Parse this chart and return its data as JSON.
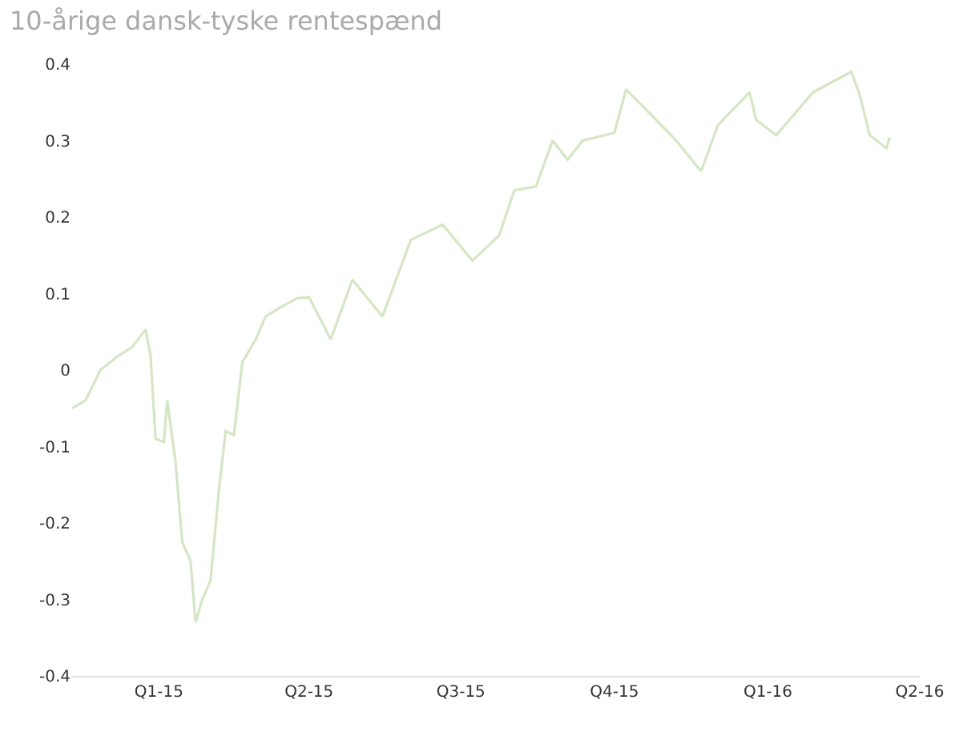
{
  "chart_data": {
    "type": "line",
    "title": "10-årige dansk-tyske rentespænd",
    "x": [
      "2014-11-10",
      "2014-11-18",
      "2014-11-27",
      "2014-12-06",
      "2014-12-16",
      "2014-12-24",
      "2014-12-27",
      "2014-12-30",
      "2015-01-04",
      "2015-01-06",
      "2015-01-11",
      "2015-01-15",
      "2015-01-20",
      "2015-01-23",
      "2015-01-27",
      "2015-02-01",
      "2015-02-06",
      "2015-02-10",
      "2015-02-15",
      "2015-02-20",
      "2015-02-28",
      "2015-03-06",
      "2015-03-15",
      "2015-03-25",
      "2015-04-01",
      "2015-04-14",
      "2015-04-27",
      "2015-05-15",
      "2015-06-01",
      "2015-06-20",
      "2015-07-08",
      "2015-07-24",
      "2015-08-02",
      "2015-08-15",
      "2015-08-25",
      "2015-09-03",
      "2015-09-12",
      "2015-10-01",
      "2015-10-08",
      "2015-10-26",
      "2015-11-07",
      "2015-11-22",
      "2015-12-02",
      "2015-12-21",
      "2015-12-25",
      "2016-01-06",
      "2016-01-19",
      "2016-01-28",
      "2016-02-20",
      "2016-02-25",
      "2016-03-02",
      "2016-03-12",
      "2016-03-14"
    ],
    "series": [
      {
        "color": "#d5e6c4",
        "values": [
          -0.05,
          -0.04,
          0.0,
          0.016,
          0.03,
          0.053,
          0.02,
          -0.09,
          -0.094,
          -0.04,
          -0.12,
          -0.225,
          -0.25,
          -0.33,
          -0.3,
          -0.275,
          -0.157,
          -0.08,
          -0.085,
          0.01,
          0.04,
          0.07,
          0.082,
          0.094,
          0.095,
          0.04,
          0.118,
          0.07,
          0.17,
          0.19,
          0.143,
          0.176,
          0.235,
          0.24,
          0.3,
          0.275,
          0.3,
          0.31,
          0.367,
          0.327,
          0.3,
          0.26,
          0.32,
          0.363,
          0.327,
          0.307,
          0.34,
          0.363,
          0.39,
          0.36,
          0.307,
          0.29,
          0.304
        ]
      }
    ],
    "xlim": [
      "2014-11-10",
      "2016-04-01"
    ],
    "xticks": [
      {
        "value": "2015-01-01",
        "label": "Q1-15"
      },
      {
        "value": "2015-04-01",
        "label": "Q2-15"
      },
      {
        "value": "2015-07-01",
        "label": "Q3-15"
      },
      {
        "value": "2015-10-01",
        "label": "Q4-15"
      },
      {
        "value": "2016-01-01",
        "label": "Q1-16"
      },
      {
        "value": "2016-04-01",
        "label": "Q2-16"
      }
    ],
    "ylim": [
      -0.4,
      0.4
    ],
    "yticks": [
      -0.4,
      -0.3,
      -0.2,
      -0.1,
      0,
      0.1,
      0.2,
      0.3,
      0.4
    ],
    "marker": "none",
    "line_style": "solid"
  }
}
